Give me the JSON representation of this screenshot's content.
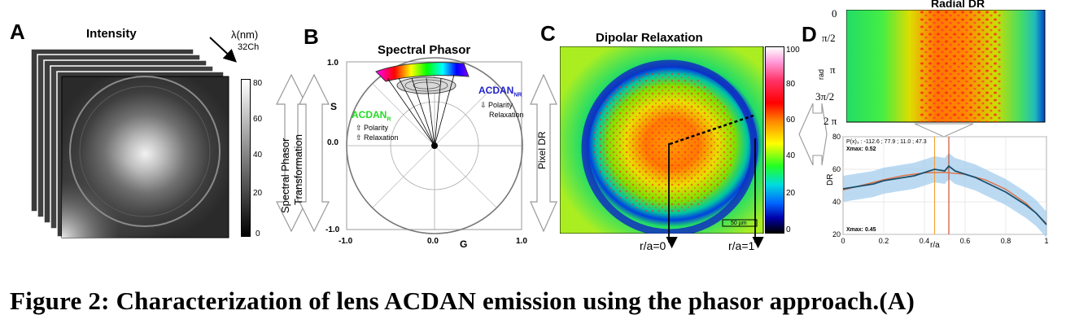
{
  "panel_a": {
    "letter": "A",
    "title": "Intensity",
    "lambda_label": "λ(nm)",
    "channels_label": "32Ch",
    "colorbar_ticks": [
      "80",
      "60",
      "40",
      "20",
      "0"
    ]
  },
  "arrow_ab": {
    "label_line1": "Spectral Phasor",
    "label_line2": "Transformation"
  },
  "panel_b": {
    "letter": "B",
    "title": "Spectral Phasor",
    "s_axis": "S",
    "g_axis": "G",
    "s_ticks": [
      "1.0",
      "0.0",
      "-1.0"
    ],
    "g_ticks": [
      "-1.0",
      "0.0",
      "1.0"
    ],
    "acdan_r": "ACDAN",
    "acdan_r_sub": "R",
    "acdan_r_line1": "⇧ Polarity",
    "acdan_r_line2": "⇧ Relaxation",
    "acdan_nr": "ACDAN",
    "acdan_nr_sub": "NR",
    "acdan_nr_line1": "⇩ Polarity",
    "acdan_nr_line2": "Relaxation"
  },
  "arrow_bc": {
    "label": "Pixel DR"
  },
  "panel_c": {
    "letter": "C",
    "title": "Dipolar Relaxation",
    "colorbar_ticks": [
      "100",
      "80",
      "60",
      "40",
      "20",
      "0"
    ],
    "scalebar_label": "50 µm",
    "r0_label": "r/a=0",
    "r1_label": "r/a=1"
  },
  "panel_d": {
    "letter": "D",
    "title": "Radial DR",
    "rad_label": "rad",
    "rad_ticks": [
      "0",
      "π/2",
      "π",
      "3π/2",
      "2 π"
    ],
    "fit_text": "P(x)₃ : -112.6 ; 77.9 ; 11.0 ; 47.3",
    "xmax1": "Xmax: 0.52",
    "xmax2": "Xmax: 0.45",
    "dr_label": "DR",
    "ra_label": "r/a"
  },
  "caption": "Figure 2: Characterization of lens ACDAN emission using the phasor approach.(A)",
  "chart_data": {
    "type": "line",
    "title": "",
    "xlabel": "r/a",
    "ylabel": "DR",
    "xlim": [
      0,
      1
    ],
    "ylim": [
      20,
      80
    ],
    "x_ticks": [
      "0",
      "0.2",
      "0.4",
      "0.6",
      "0.8",
      "1"
    ],
    "y_ticks": [
      "80",
      "60",
      "40",
      "20"
    ],
    "grid": true,
    "series": [
      {
        "x": [
          0,
          0.05,
          0.1,
          0.15,
          0.2,
          0.25,
          0.3,
          0.35,
          0.4,
          0.45,
          0.5,
          0.52,
          0.55,
          0.6,
          0.65,
          0.7,
          0.75,
          0.8,
          0.85,
          0.9,
          0.95,
          1.0
        ],
        "y": [
          48,
          49,
          50,
          51,
          53,
          54,
          55,
          56,
          58,
          60,
          59,
          62,
          59,
          57,
          55,
          52,
          49,
          46,
          42,
          38,
          33,
          26
        ]
      },
      {
        "x": [
          0,
          0.1,
          0.2,
          0.3,
          0.4,
          0.5,
          0.6,
          0.7,
          0.8,
          0.9,
          1.0
        ],
        "y": [
          47.3,
          50.4,
          53.6,
          56.2,
          57.8,
          58.1,
          56.9,
          53.5,
          47.7,
          39.1,
          26.6
        ]
      }
    ],
    "band_halfwidth": 8,
    "vlines_x": [
      0.45,
      0.52
    ]
  }
}
